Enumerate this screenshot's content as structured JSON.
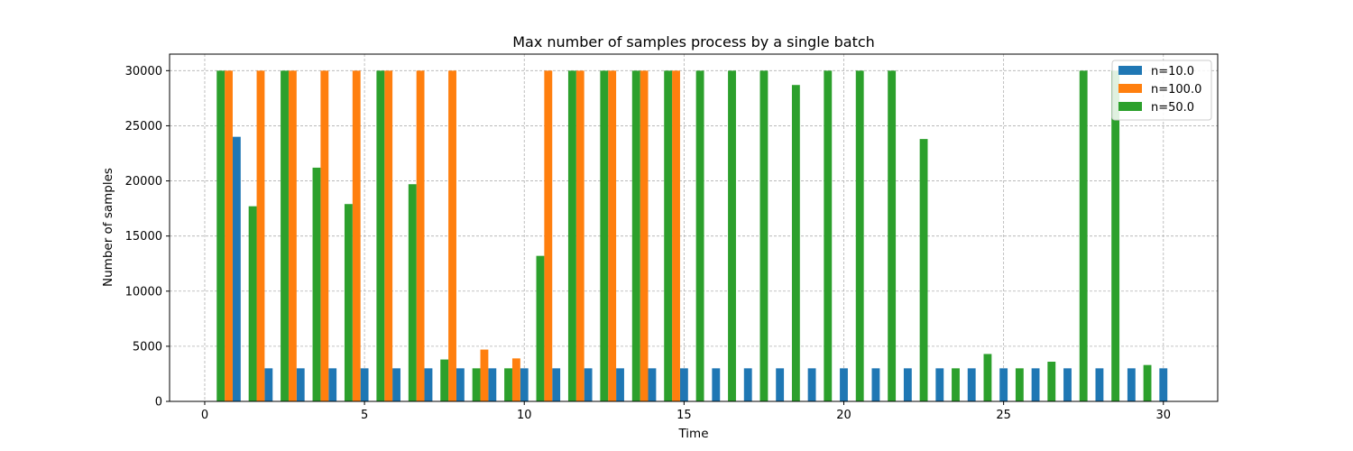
{
  "chart_data": {
    "type": "bar",
    "title": "Max number of samples process by a single batch",
    "xlabel": "Time",
    "ylabel": "Number of samples",
    "xlim": [
      -1.1,
      31.7
    ],
    "ylim": [
      0,
      31500
    ],
    "xticks": [
      0,
      5,
      10,
      15,
      20,
      25,
      30
    ],
    "yticks": [
      0,
      5000,
      10000,
      15000,
      20000,
      25000,
      30000
    ],
    "xtick_labels": [
      "0",
      "5",
      "10",
      "15",
      "20",
      "25",
      "30"
    ],
    "ytick_labels": [
      "0",
      "5000",
      "10000",
      "15000",
      "20000",
      "25000",
      "30000"
    ],
    "grid": true,
    "legend_position": "top-right",
    "bar_width": 0.25,
    "series": [
      {
        "name": "n=10.0",
        "color": "#1f77b4",
        "points": [
          {
            "x": 1.0,
            "y": 24000
          },
          {
            "x": 2.0,
            "y": 3000
          },
          {
            "x": 3.0,
            "y": 3000
          },
          {
            "x": 4.0,
            "y": 3000
          },
          {
            "x": 5.0,
            "y": 3000
          },
          {
            "x": 6.0,
            "y": 3000
          },
          {
            "x": 7.0,
            "y": 3000
          },
          {
            "x": 8.0,
            "y": 3000
          },
          {
            "x": 9.0,
            "y": 3000
          },
          {
            "x": 10.0,
            "y": 3000
          },
          {
            "x": 11.0,
            "y": 3000
          },
          {
            "x": 12.0,
            "y": 3000
          },
          {
            "x": 13.0,
            "y": 3000
          },
          {
            "x": 14.0,
            "y": 3000
          },
          {
            "x": 15.0,
            "y": 3000
          },
          {
            "x": 16.0,
            "y": 3000
          },
          {
            "x": 17.0,
            "y": 3000
          },
          {
            "x": 18.0,
            "y": 3000
          },
          {
            "x": 19.0,
            "y": 3000
          },
          {
            "x": 20.0,
            "y": 3000
          },
          {
            "x": 21.0,
            "y": 3000
          },
          {
            "x": 22.0,
            "y": 3000
          },
          {
            "x": 23.0,
            "y": 3000
          },
          {
            "x": 24.0,
            "y": 3000
          },
          {
            "x": 25.0,
            "y": 3000
          },
          {
            "x": 26.0,
            "y": 3000
          },
          {
            "x": 27.0,
            "y": 3000
          },
          {
            "x": 28.0,
            "y": 3000
          },
          {
            "x": 29.0,
            "y": 3000
          },
          {
            "x": 30.0,
            "y": 3000
          }
        ]
      },
      {
        "name": "n=100.0",
        "color": "#ff7f0e",
        "points": [
          {
            "x": 0.75,
            "y": 30000
          },
          {
            "x": 1.75,
            "y": 30000
          },
          {
            "x": 2.75,
            "y": 30000
          },
          {
            "x": 3.75,
            "y": 30000
          },
          {
            "x": 4.75,
            "y": 30000
          },
          {
            "x": 5.75,
            "y": 30000
          },
          {
            "x": 6.75,
            "y": 30000
          },
          {
            "x": 7.75,
            "y": 30000
          },
          {
            "x": 8.75,
            "y": 4700
          },
          {
            "x": 9.75,
            "y": 3900
          },
          {
            "x": 10.75,
            "y": 30000
          },
          {
            "x": 11.75,
            "y": 30000
          },
          {
            "x": 12.75,
            "y": 30000
          },
          {
            "x": 13.75,
            "y": 30000
          },
          {
            "x": 14.75,
            "y": 30000
          }
        ]
      },
      {
        "name": "n=50.0",
        "color": "#2ca02c",
        "points": [
          {
            "x": 0.5,
            "y": 30000
          },
          {
            "x": 1.5,
            "y": 17700
          },
          {
            "x": 2.5,
            "y": 30000
          },
          {
            "x": 3.5,
            "y": 21200
          },
          {
            "x": 4.5,
            "y": 17900
          },
          {
            "x": 5.5,
            "y": 30000
          },
          {
            "x": 6.5,
            "y": 19700
          },
          {
            "x": 7.5,
            "y": 3800
          },
          {
            "x": 8.5,
            "y": 3000
          },
          {
            "x": 9.5,
            "y": 3000
          },
          {
            "x": 10.5,
            "y": 13200
          },
          {
            "x": 11.5,
            "y": 30000
          },
          {
            "x": 12.5,
            "y": 30000
          },
          {
            "x": 13.5,
            "y": 30000
          },
          {
            "x": 14.5,
            "y": 30000
          },
          {
            "x": 15.5,
            "y": 30000
          },
          {
            "x": 16.5,
            "y": 30000
          },
          {
            "x": 17.5,
            "y": 30000
          },
          {
            "x": 18.5,
            "y": 28700
          },
          {
            "x": 19.5,
            "y": 30000
          },
          {
            "x": 20.5,
            "y": 30000
          },
          {
            "x": 21.5,
            "y": 30000
          },
          {
            "x": 22.5,
            "y": 23800
          },
          {
            "x": 23.5,
            "y": 3000
          },
          {
            "x": 24.5,
            "y": 4300
          },
          {
            "x": 25.5,
            "y": 3000
          },
          {
            "x": 26.5,
            "y": 3600
          },
          {
            "x": 27.5,
            "y": 30000
          },
          {
            "x": 28.5,
            "y": 30000
          },
          {
            "x": 29.5,
            "y": 3300
          }
        ]
      }
    ]
  }
}
